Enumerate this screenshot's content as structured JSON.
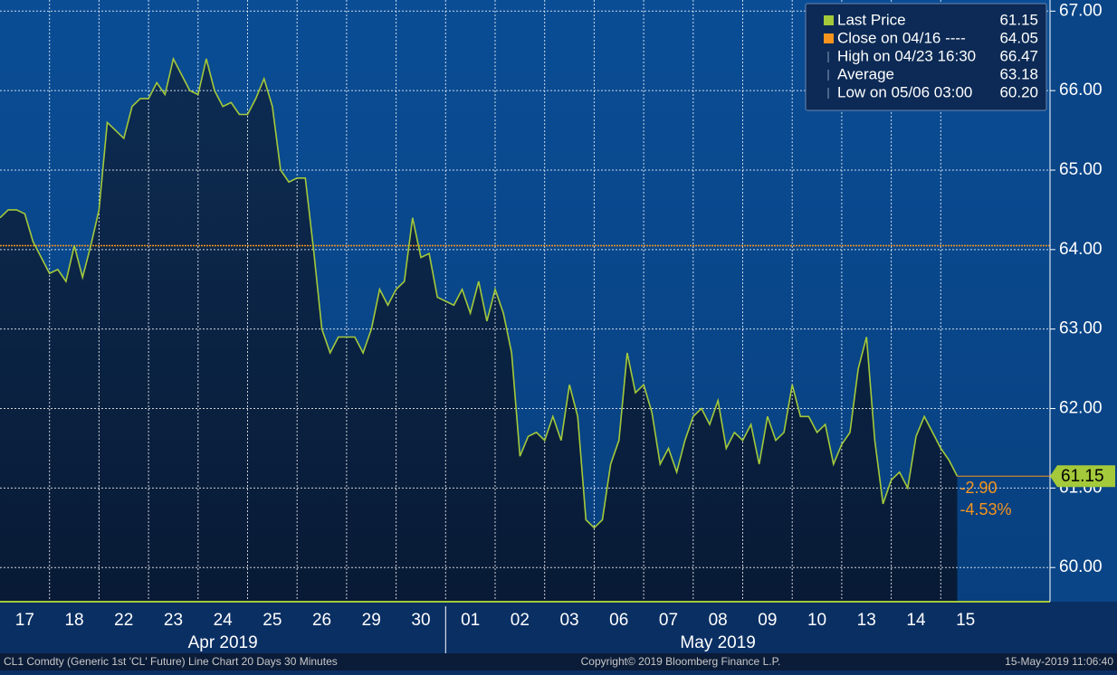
{
  "chart_data": {
    "type": "line",
    "categories": [
      "17",
      "18",
      "22",
      "23",
      "24",
      "25",
      "26",
      "29",
      "30",
      "01",
      "02",
      "03",
      "06",
      "07",
      "08",
      "09",
      "10",
      "13",
      "14",
      "15"
    ],
    "months": [
      "Apr 2019",
      "May 2019"
    ],
    "series": [
      {
        "name": "Last Price",
        "color": "#a4c93a",
        "values": [
          [
            64.4,
            64.5,
            64.5,
            64.45,
            64.1,
            63.9
          ],
          [
            63.7,
            63.75,
            63.6,
            64.05,
            63.65,
            64.05
          ],
          [
            64.5,
            65.6,
            65.5,
            65.4,
            65.8,
            65.9
          ],
          [
            65.9,
            66.1,
            65.95,
            66.4,
            66.2,
            66.0
          ],
          [
            65.95,
            66.4,
            66.0,
            65.8,
            65.85,
            65.7
          ],
          [
            65.7,
            65.9,
            66.15,
            65.8,
            65.0,
            64.85
          ],
          [
            64.9,
            64.9,
            64.0,
            63.0,
            62.7,
            62.9
          ],
          [
            62.9,
            62.9,
            62.7,
            63.0,
            63.5,
            63.3
          ],
          [
            63.5,
            63.6,
            64.4,
            63.9,
            63.95,
            63.4
          ],
          [
            63.35,
            63.3,
            63.5,
            63.2,
            63.6,
            63.1
          ],
          [
            63.5,
            63.2,
            62.7,
            61.4,
            61.65,
            61.7
          ],
          [
            61.6,
            61.9,
            61.6,
            62.3,
            61.9,
            60.6
          ],
          [
            60.5,
            60.6,
            61.3,
            61.6,
            62.7,
            62.2
          ],
          [
            62.3,
            61.95,
            61.3,
            61.5,
            61.2,
            61.6
          ],
          [
            61.9,
            62.0,
            61.8,
            62.1,
            61.5,
            61.7
          ],
          [
            61.6,
            61.8,
            61.3,
            61.9,
            61.6,
            61.7
          ],
          [
            62.3,
            61.9,
            61.9,
            61.7,
            61.8,
            61.3
          ],
          [
            61.55,
            61.7,
            62.5,
            62.9,
            61.6,
            60.8
          ],
          [
            61.1,
            61.2,
            61.0,
            61.65,
            61.9,
            61.7
          ],
          [
            61.5,
            61.35,
            61.15
          ]
        ]
      }
    ],
    "ylim": [
      59.57,
      67.14
    ],
    "yticks": [
      {
        "value": 60,
        "label": "60.00"
      },
      {
        "value": 61,
        "label": "61.00"
      },
      {
        "value": 62,
        "label": "62.00"
      },
      {
        "value": 63,
        "label": "63.00"
      },
      {
        "value": 64,
        "label": "64.00"
      },
      {
        "value": 65,
        "label": "65.00"
      },
      {
        "value": 66,
        "label": "66.00"
      },
      {
        "value": 67,
        "label": "67.00"
      }
    ],
    "grid": true,
    "legend": [
      {
        "name": "Last Price",
        "color": "#a4c93a",
        "value": 61.15
      },
      {
        "name": "Close on 04/16 ----",
        "color": "#f7941d",
        "value": 64.05
      },
      {
        "name": "High on 04/23 16:30",
        "value": 66.47
      },
      {
        "name": "Average",
        "value": 63.18
      },
      {
        "name": "Low on 05/06 03:00",
        "value": 60.2,
        "value_label": "60.20"
      }
    ],
    "change": {
      "value": -2.9,
      "label": "-2.90"
    },
    "change_pct": {
      "value": -4.53,
      "label": "-4.53%"
    },
    "footer": {
      "left": "CL1 Comdty (Generic 1st 'CL' Future) Line Chart 20 Days 30 Minutes",
      "center": "Copyright© 2019 Bloomberg Finance L.P.",
      "right": "15-May-2019 11:06:40"
    }
  }
}
